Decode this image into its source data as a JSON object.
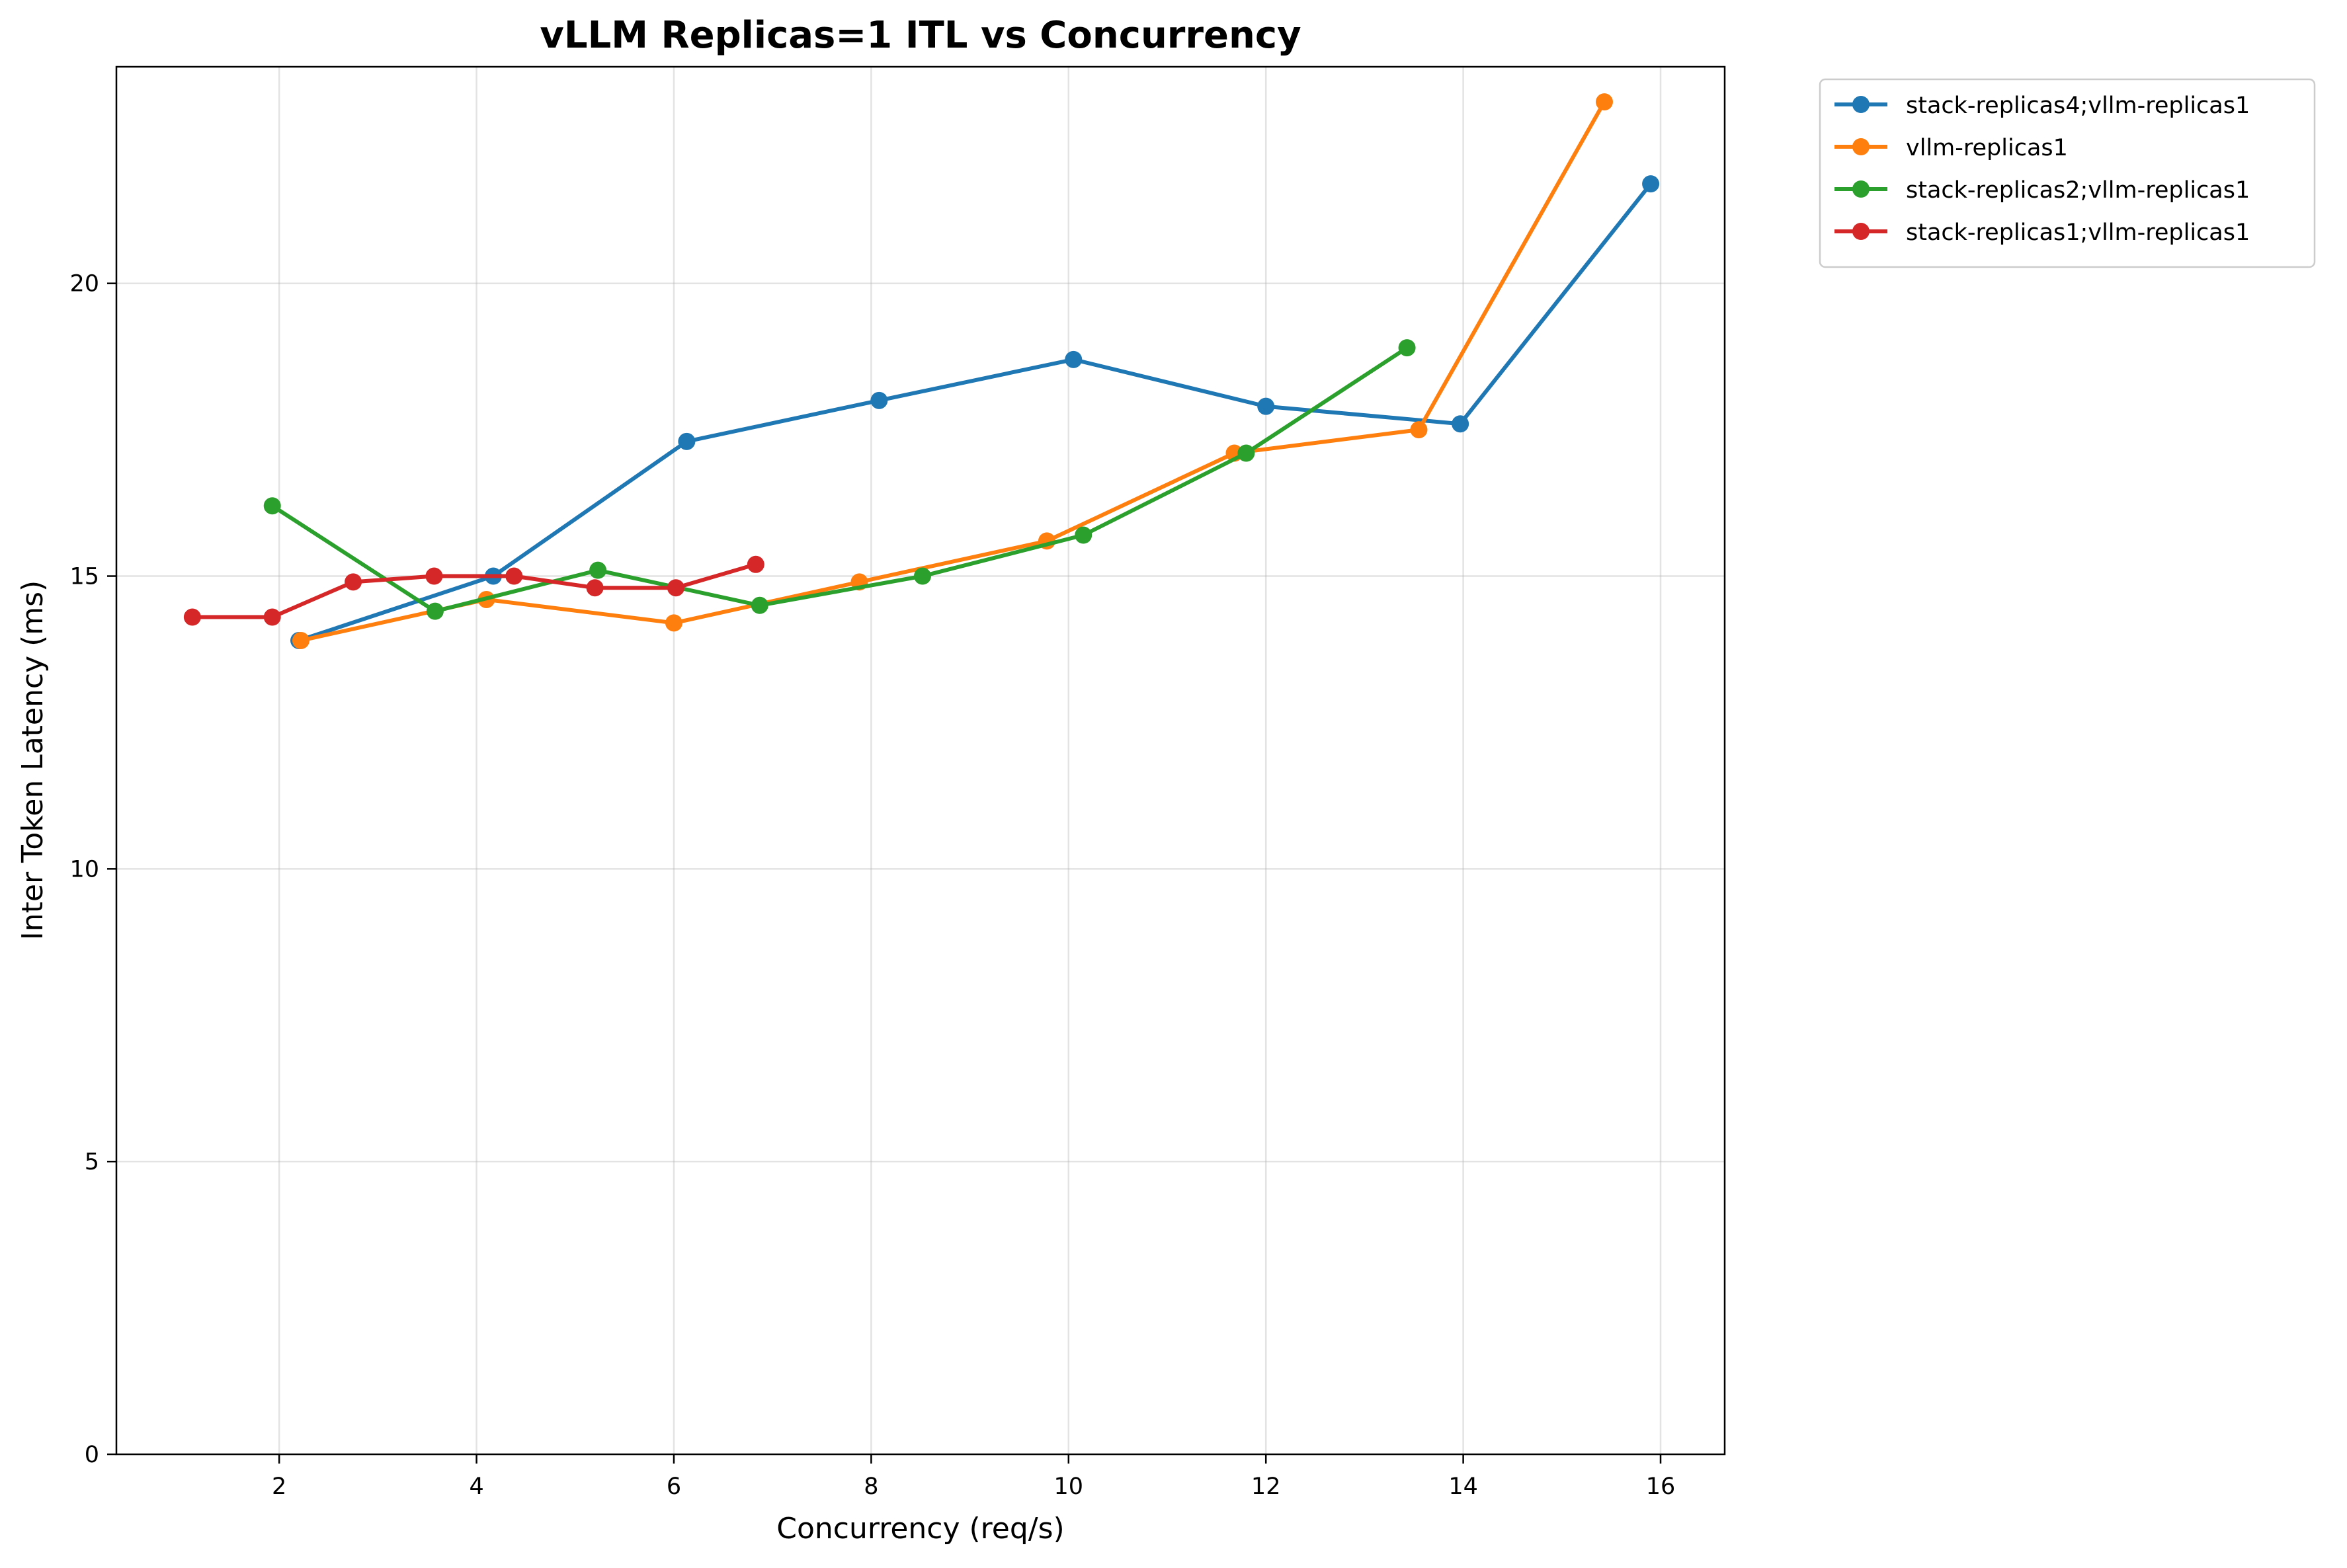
{
  "chart_data": {
    "type": "line",
    "title": "vLLM Replicas=1 ITL vs Concurrency",
    "xlabel": "Concurrency (req/s)",
    "ylabel": "Inter Token Latency (ms)",
    "xlim": [
      0.35,
      16.65
    ],
    "ylim": [
      0,
      23.7
    ],
    "xticks": [
      2,
      4,
      6,
      8,
      10,
      12,
      14,
      16
    ],
    "yticks": [
      0,
      5,
      10,
      15,
      20
    ],
    "grid": true,
    "legend_position": "outside-top-right",
    "series": [
      {
        "name": "stack-replicas4;vllm-replicas1",
        "color": "#1f77b4",
        "x": [
          2.2,
          4.17,
          6.13,
          8.08,
          10.05,
          12.0,
          13.97,
          15.9
        ],
        "y": [
          13.9,
          15.0,
          17.3,
          18.0,
          18.7,
          17.9,
          17.6,
          21.7
        ]
      },
      {
        "name": "vllm-replicas1",
        "color": "#ff7f0e",
        "x": [
          2.22,
          4.1,
          6.0,
          7.88,
          9.78,
          11.68,
          13.55,
          15.43
        ],
        "y": [
          13.9,
          14.6,
          14.2,
          14.9,
          15.6,
          17.1,
          17.5,
          23.1
        ]
      },
      {
        "name": "stack-replicas2;vllm-replicas1",
        "color": "#2ca02c",
        "x": [
          1.93,
          3.58,
          5.23,
          6.87,
          8.52,
          10.15,
          11.8,
          13.43
        ],
        "y": [
          16.2,
          14.4,
          15.1,
          14.5,
          15.0,
          15.7,
          17.1,
          18.9
        ]
      },
      {
        "name": "stack-replicas1;vllm-replicas1",
        "color": "#d62728",
        "x": [
          1.12,
          1.93,
          2.75,
          3.57,
          4.38,
          5.2,
          6.02,
          6.83
        ],
        "y": [
          14.3,
          14.3,
          14.9,
          15.0,
          15.0,
          14.8,
          14.8,
          15.2
        ]
      }
    ]
  }
}
